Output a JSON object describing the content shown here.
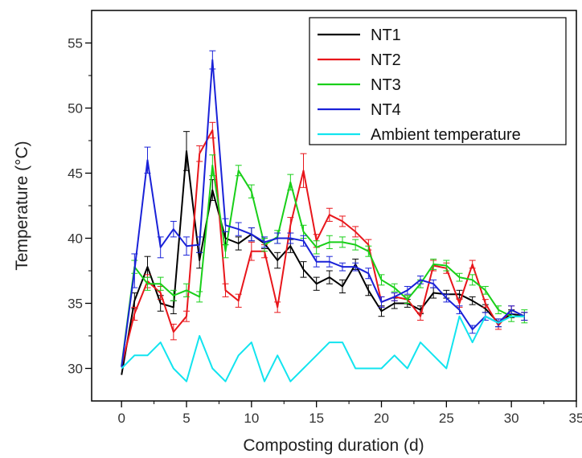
{
  "chart_data": {
    "type": "line",
    "title": "",
    "xlabel": "Composting duration (d)",
    "ylabel": "Temperature (°C)",
    "xlim": [
      -2.3,
      35
    ],
    "ylim": [
      27.5,
      57.5
    ],
    "xticks": [
      0,
      5,
      10,
      15,
      20,
      25,
      30,
      35
    ],
    "yticks": [
      30,
      35,
      40,
      45,
      50,
      55
    ],
    "grid": false,
    "legend_position": "top-right",
    "series": [
      {
        "name": "NT1",
        "color": "#000000",
        "x": [
          0,
          1,
          2,
          3,
          4,
          5,
          6,
          7,
          8,
          9,
          10,
          11,
          12,
          13,
          14,
          15,
          16,
          17,
          18,
          19,
          20,
          21,
          22,
          23,
          24,
          25,
          26,
          27,
          28,
          29,
          30,
          31
        ],
        "y": [
          29.5,
          35.2,
          37.8,
          35,
          34.7,
          46.7,
          38.3,
          43.7,
          40,
          39.6,
          40.3,
          39.6,
          38.3,
          39.4,
          37.6,
          36.5,
          37,
          36.3,
          38,
          36,
          34.4,
          35,
          35,
          34.5,
          35.8,
          35.7,
          35.7,
          35.2,
          34.6,
          33.5,
          34.2,
          34
        ],
        "err": [
          0,
          0.6,
          0.8,
          0.6,
          0.5,
          1.5,
          0.6,
          0.8,
          0.5,
          0.5,
          0.5,
          0.4,
          0.6,
          0.5,
          0.6,
          0.5,
          0.5,
          0.5,
          0.4,
          0.4,
          0.4,
          0.4,
          0.3,
          0.3,
          0.4,
          0.3,
          0.3,
          0.3,
          0.3,
          0.3,
          0.3,
          0.3
        ]
      },
      {
        "name": "NT2",
        "color": "#e8161b",
        "x": [
          0,
          1,
          2,
          3,
          4,
          5,
          6,
          7,
          8,
          9,
          10,
          11,
          12,
          13,
          14,
          15,
          16,
          17,
          18,
          19,
          20,
          21,
          22,
          23,
          24,
          25,
          26,
          27,
          28,
          29,
          30,
          31
        ],
        "y": [
          30.2,
          34.2,
          36.7,
          35.8,
          32.8,
          34,
          46.5,
          48.3,
          36,
          35.2,
          39,
          39,
          34.7,
          41,
          45.2,
          39.8,
          41.8,
          41.3,
          40.5,
          39.5,
          35.1,
          35.5,
          35.3,
          34,
          37.9,
          37.7,
          35,
          38,
          35,
          33.3,
          34.5,
          34
        ],
        "err": [
          0,
          0.5,
          0.5,
          0.5,
          0.6,
          0.4,
          0.6,
          0.6,
          0.5,
          0.5,
          0.7,
          0.5,
          0.4,
          0.6,
          1.3,
          0.5,
          0.5,
          0.4,
          0.4,
          0.4,
          0.4,
          0.3,
          0.3,
          0.3,
          0.4,
          0.4,
          0.3,
          0.3,
          0.3,
          0.3,
          0.3,
          0.3
        ]
      },
      {
        "name": "NT3",
        "color": "#19cf19",
        "x": [
          0,
          1,
          2,
          3,
          4,
          5,
          6,
          7,
          8,
          9,
          10,
          11,
          12,
          13,
          14,
          15,
          16,
          17,
          18,
          19,
          20,
          21,
          22,
          23,
          24,
          25,
          26,
          27,
          28,
          29,
          30,
          31
        ],
        "y": [
          30.2,
          37.8,
          36.5,
          36.5,
          35.6,
          36,
          35.5,
          45.6,
          39,
          45.2,
          43.6,
          39.5,
          40.1,
          44.3,
          40.5,
          39.3,
          39.7,
          39.7,
          39.5,
          39,
          36.8,
          36.2,
          35.3,
          36.5,
          38,
          37.9,
          37,
          36.8,
          36,
          34.5,
          34,
          34
        ],
        "err": [
          0,
          0.5,
          0.5,
          0.5,
          0.4,
          0.5,
          0.4,
          0.8,
          0.5,
          0.4,
          0.5,
          0.5,
          0.5,
          0.6,
          0.5,
          0.5,
          0.5,
          0.4,
          0.4,
          0.4,
          0.4,
          0.3,
          0.3,
          0.3,
          0.4,
          0.4,
          0.3,
          0.4,
          0.3,
          0.3,
          0.4,
          0.5
        ]
      },
      {
        "name": "NT4",
        "color": "#1a22d8",
        "x": [
          0,
          1,
          2,
          3,
          4,
          5,
          6,
          7,
          8,
          9,
          10,
          11,
          12,
          13,
          14,
          15,
          16,
          17,
          18,
          19,
          20,
          21,
          22,
          23,
          24,
          25,
          26,
          27,
          28,
          29,
          30,
          31
        ],
        "y": [
          30.1,
          37.5,
          46,
          39.3,
          40.7,
          39.4,
          39.5,
          53.7,
          41,
          40.7,
          40.3,
          39.7,
          40,
          40,
          39.8,
          38.2,
          38.2,
          37.8,
          37.8,
          37.3,
          35.1,
          35.5,
          36,
          36.8,
          36.5,
          35.4,
          34.5,
          33,
          34,
          33.5,
          34.5,
          34
        ],
        "err": [
          0,
          1.3,
          1,
          0.8,
          0.6,
          0.7,
          0.6,
          0.7,
          0.5,
          0.5,
          0.5,
          0.4,
          0.4,
          0.4,
          0.4,
          0.4,
          0.4,
          0.3,
          0.3,
          0.4,
          0.4,
          0.3,
          0.3,
          0.3,
          0.3,
          0.3,
          0.3,
          0.3,
          0.3,
          0.3,
          0.3,
          0.3
        ]
      },
      {
        "name": "Ambient temperature",
        "color": "#12e4ef",
        "x": [
          0,
          1,
          2,
          3,
          4,
          5,
          6,
          7,
          8,
          9,
          10,
          11,
          12,
          13,
          14,
          15,
          16,
          17,
          18,
          19,
          20,
          21,
          22,
          23,
          24,
          25,
          26,
          27,
          28,
          29,
          30,
          31
        ],
        "y": [
          30,
          31,
          31,
          32,
          30,
          29,
          32.5,
          30,
          29,
          31,
          32,
          29,
          31,
          29,
          30,
          31,
          32,
          32,
          30,
          30,
          30,
          31,
          30,
          32,
          31,
          30,
          34,
          32,
          34,
          33.5,
          34,
          34
        ],
        "err": []
      }
    ]
  }
}
